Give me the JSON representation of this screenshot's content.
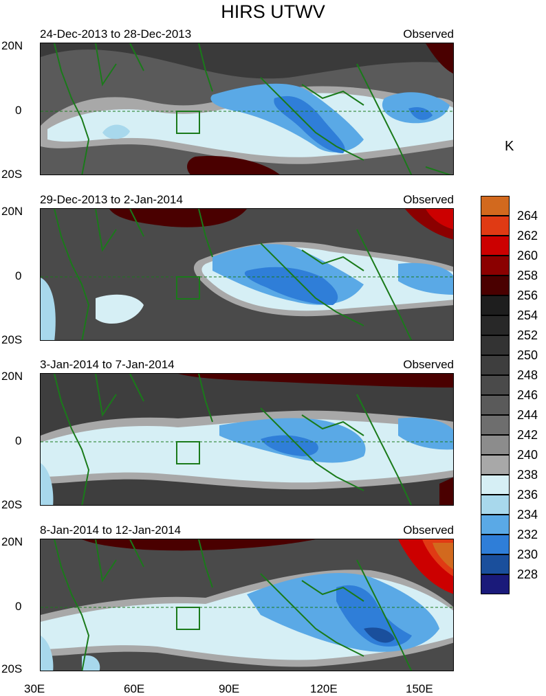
{
  "figure": {
    "title": "HIRS UTWV",
    "units": "K"
  },
  "panels": [
    {
      "left_title": "24-Dec-2013 to 28-Dec-2013",
      "right_title": "Observed"
    },
    {
      "left_title": "29-Dec-2013 to 2-Jan-2014",
      "right_title": "Observed"
    },
    {
      "left_title": "3-Jan-2014 to 7-Jan-2014",
      "right_title": "Observed"
    },
    {
      "left_title": "8-Jan-2014 to 12-Jan-2014",
      "right_title": "Observed"
    }
  ],
  "axes": {
    "y_ticks": [
      "20N",
      "0",
      "20S"
    ],
    "x_ticks": [
      "30E",
      "60E",
      "90E",
      "120E",
      "150E"
    ]
  },
  "colorbar": {
    "labels": [
      "264",
      "262",
      "260",
      "258",
      "256",
      "254",
      "252",
      "250",
      "248",
      "246",
      "244",
      "242",
      "240",
      "238",
      "236",
      "234",
      "232",
      "230",
      "228"
    ],
    "colors": [
      "#d2691e",
      "#e03a14",
      "#cc0000",
      "#8b0000",
      "#4a0000",
      "#1e1e1e",
      "#282828",
      "#333333",
      "#3e3e3e",
      "#4a4a4a",
      "#5a5a5a",
      "#6e6e6e",
      "#8c8c8c",
      "#a8a8a8",
      "#d6eff5",
      "#a8d8ec",
      "#5aa9e6",
      "#2f7ed8",
      "#1a4f9c",
      "#1a1a7a"
    ]
  },
  "chart_data": [
    {
      "type": "heatmap",
      "title": "24-Dec-2013 to 28-Dec-2013",
      "subtitle": "Observed",
      "x_range": [
        30,
        160
      ],
      "y_range": [
        -20,
        20
      ],
      "xlabel": "",
      "ylabel": "",
      "variable": "UTWV brightness temperature (K)",
      "colormap_levels": [
        228,
        230,
        232,
        234,
        236,
        238,
        240,
        242,
        244,
        246,
        248,
        250,
        252,
        254,
        256,
        258,
        260,
        262,
        264
      ]
    },
    {
      "type": "heatmap",
      "title": "29-Dec-2013 to 2-Jan-2014",
      "subtitle": "Observed",
      "x_range": [
        30,
        160
      ],
      "y_range": [
        -20,
        20
      ],
      "xlabel": "",
      "ylabel": "",
      "variable": "UTWV brightness temperature (K)",
      "colormap_levels": [
        228,
        230,
        232,
        234,
        236,
        238,
        240,
        242,
        244,
        246,
        248,
        250,
        252,
        254,
        256,
        258,
        260,
        262,
        264
      ]
    },
    {
      "type": "heatmap",
      "title": "3-Jan-2014 to 7-Jan-2014",
      "subtitle": "Observed",
      "x_range": [
        30,
        160
      ],
      "y_range": [
        -20,
        20
      ],
      "xlabel": "",
      "ylabel": "",
      "variable": "UTWV brightness temperature (K)",
      "colormap_levels": [
        228,
        230,
        232,
        234,
        236,
        238,
        240,
        242,
        244,
        246,
        248,
        250,
        252,
        254,
        256,
        258,
        260,
        262,
        264
      ]
    },
    {
      "type": "heatmap",
      "title": "8-Jan-2014 to 12-Jan-2014",
      "subtitle": "Observed",
      "x_range": [
        30,
        160
      ],
      "y_range": [
        -20,
        20
      ],
      "xlabel": "",
      "ylabel": "",
      "variable": "UTWV brightness temperature (K)",
      "colormap_levels": [
        228,
        230,
        232,
        234,
        236,
        238,
        240,
        242,
        244,
        246,
        248,
        250,
        252,
        254,
        256,
        258,
        260,
        262,
        264
      ]
    }
  ]
}
